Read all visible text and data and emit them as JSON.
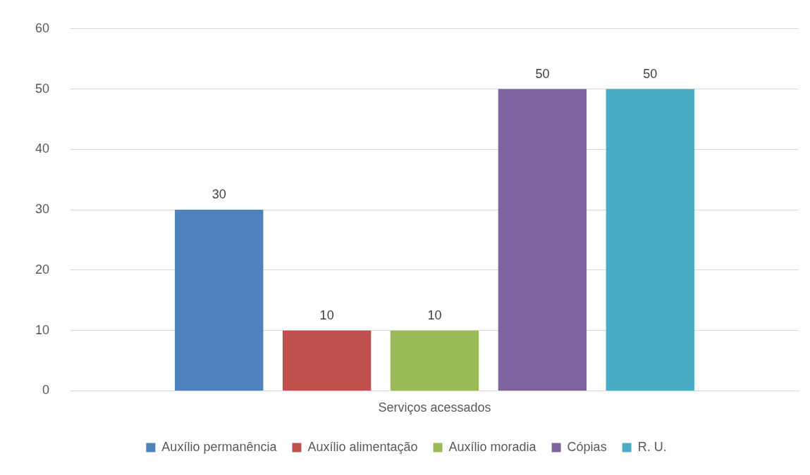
{
  "chart_data": {
    "type": "bar",
    "categories": [
      "Serviços acessados"
    ],
    "series": [
      {
        "name": "Auxílio permanência",
        "color": "#4f81bd",
        "values": [
          30
        ]
      },
      {
        "name": "Auxílio alimentação",
        "color": "#c0504d",
        "values": [
          10
        ]
      },
      {
        "name": "Auxílio moradia",
        "color": "#9bbb59",
        "values": [
          10
        ]
      },
      {
        "name": "Cópias",
        "color": "#8064a2",
        "values": [
          50
        ]
      },
      {
        "name": "R. U.",
        "color": "#4bacc6",
        "values": [
          50
        ]
      }
    ],
    "ylim": [
      0,
      60
    ],
    "yticks": [
      0,
      10,
      20,
      30,
      40,
      50,
      60
    ],
    "grid": "y",
    "legend": "bottom",
    "data_labels": true
  }
}
